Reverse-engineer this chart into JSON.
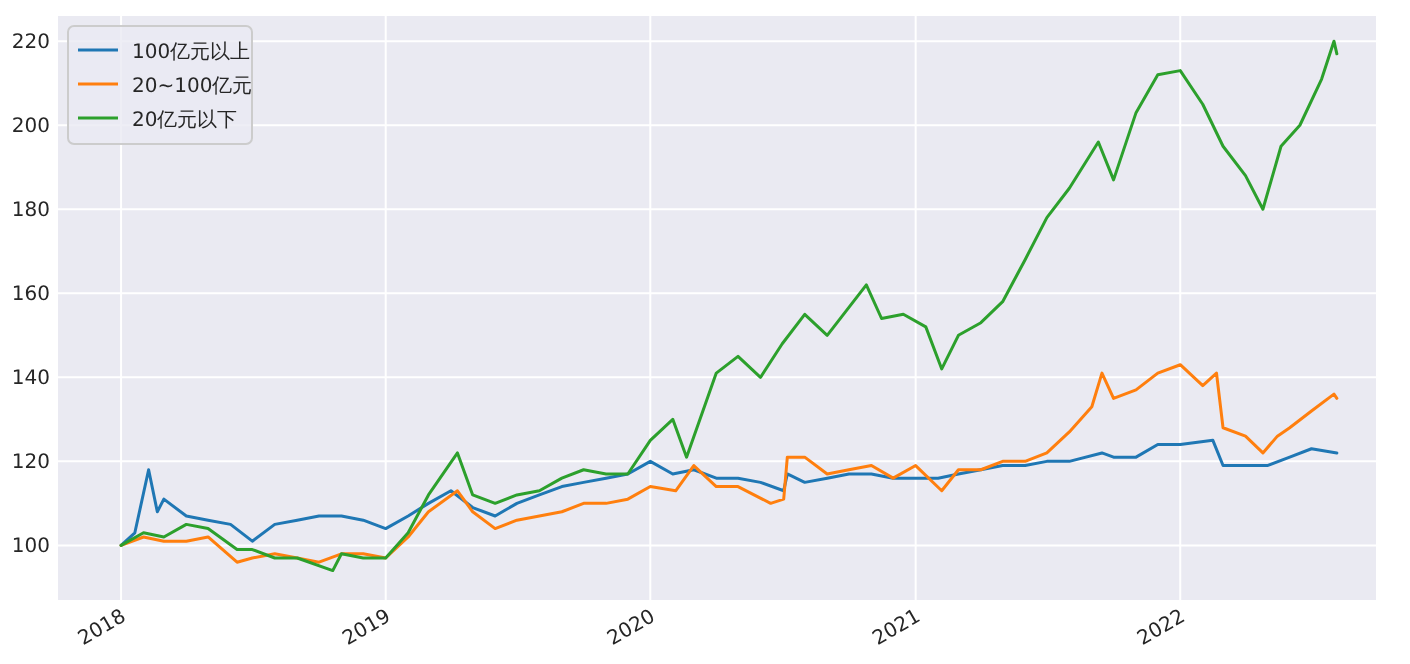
{
  "chart_data": {
    "type": "line",
    "xlim": [
      "2017-10-06",
      "2022-09-28"
    ],
    "ylim": [
      87,
      226
    ],
    "xticks": [
      "2018",
      "2019",
      "2020",
      "2021",
      "2022"
    ],
    "yticks": [
      100,
      120,
      140,
      160,
      180,
      200,
      220
    ],
    "grid": true,
    "legend": "top left",
    "line_style": "solid",
    "marker": "none",
    "series": [
      {
        "name": "100亿元以上",
        "color": "#1f77b4",
        "x": [
          "2018-01-01",
          "2018-01-20",
          "2018-02-08",
          "2018-02-20",
          "2018-03-01",
          "2018-04-01",
          "2018-05-01",
          "2018-06-01",
          "2018-07-01",
          "2018-08-01",
          "2018-09-01",
          "2018-10-01",
          "2018-11-01",
          "2018-12-01",
          "2019-01-01",
          "2019-02-01",
          "2019-03-01",
          "2019-04-01",
          "2019-05-01",
          "2019-06-01",
          "2019-07-01",
          "2019-08-01",
          "2019-09-01",
          "2019-10-01",
          "2019-11-01",
          "2019-12-01",
          "2020-01-01",
          "2020-02-01",
          "2020-03-01",
          "2020-04-01",
          "2020-05-01",
          "2020-06-01",
          "2020-07-03",
          "2020-07-08",
          "2020-08-01",
          "2020-09-01",
          "2020-10-01",
          "2020-11-01",
          "2020-12-01",
          "2021-01-01",
          "2021-02-01",
          "2021-03-01",
          "2021-04-01",
          "2021-05-01",
          "2021-06-01",
          "2021-07-01",
          "2021-08-01",
          "2021-09-15",
          "2021-10-01",
          "2021-11-01",
          "2021-12-01",
          "2022-01-01",
          "2022-02-15",
          "2022-03-01",
          "2022-04-01",
          "2022-05-01",
          "2022-06-01",
          "2022-07-01",
          "2022-08-05"
        ],
        "values": [
          100,
          103,
          118,
          108,
          111,
          107,
          106,
          105,
          101,
          105,
          106,
          107,
          107,
          106,
          104,
          107,
          110,
          113,
          109,
          107,
          110,
          112,
          114,
          115,
          116,
          117,
          120,
          117,
          118,
          116,
          116,
          115,
          113,
          117,
          115,
          116,
          117,
          117,
          116,
          116,
          116,
          117,
          118,
          119,
          119,
          120,
          120,
          122,
          121,
          121,
          124,
          124,
          125,
          119,
          119,
          119,
          121,
          123,
          122
        ]
      },
      {
        "name": "20~100亿元",
        "color": "#ff7f0e",
        "x": [
          "2018-01-01",
          "2018-02-01",
          "2018-03-01",
          "2018-04-01",
          "2018-05-01",
          "2018-06-10",
          "2018-07-01",
          "2018-08-01",
          "2018-09-01",
          "2018-10-01",
          "2018-11-01",
          "2018-12-01",
          "2019-01-01",
          "2019-02-01",
          "2019-03-01",
          "2019-04-10",
          "2019-05-01",
          "2019-06-01",
          "2019-07-01",
          "2019-08-01",
          "2019-09-01",
          "2019-10-01",
          "2019-11-01",
          "2019-12-01",
          "2020-01-01",
          "2020-02-05",
          "2020-03-01",
          "2020-04-01",
          "2020-05-01",
          "2020-06-15",
          "2020-07-03",
          "2020-07-08",
          "2020-08-01",
          "2020-09-01",
          "2020-10-01",
          "2020-11-01",
          "2020-12-01",
          "2021-01-01",
          "2021-02-06",
          "2021-03-01",
          "2021-04-01",
          "2021-05-01",
          "2021-06-01",
          "2021-07-01",
          "2021-08-01",
          "2021-09-01",
          "2021-09-15",
          "2021-10-01",
          "2021-11-01",
          "2021-12-01",
          "2022-01-01",
          "2022-02-01",
          "2022-02-20",
          "2022-03-01",
          "2022-04-01",
          "2022-04-25",
          "2022-05-15",
          "2022-06-01",
          "2022-07-01",
          "2022-08-01",
          "2022-08-05"
        ],
        "values": [
          100,
          102,
          101,
          101,
          102,
          96,
          97,
          98,
          97,
          96,
          98,
          98,
          97,
          102,
          108,
          113,
          108,
          104,
          106,
          107,
          108,
          110,
          110,
          111,
          114,
          113,
          119,
          114,
          114,
          110,
          111,
          121,
          121,
          117,
          118,
          119,
          116,
          119,
          113,
          118,
          118,
          120,
          120,
          122,
          127,
          133,
          141,
          135,
          137,
          141,
          143,
          138,
          141,
          128,
          126,
          122,
          126,
          128,
          132,
          136,
          135
        ]
      },
      {
        "name": "20亿元以下",
        "color": "#2ca02c",
        "x": [
          "2018-01-01",
          "2018-02-01",
          "2018-03-01",
          "2018-04-01",
          "2018-05-01",
          "2018-06-10",
          "2018-07-01",
          "2018-08-01",
          "2018-09-01",
          "2018-10-20",
          "2018-11-01",
          "2018-12-01",
          "2019-01-01",
          "2019-02-01",
          "2019-03-01",
          "2019-04-10",
          "2019-05-01",
          "2019-06-01",
          "2019-07-01",
          "2019-08-01",
          "2019-09-01",
          "2019-10-01",
          "2019-11-01",
          "2019-12-01",
          "2020-01-01",
          "2020-02-01",
          "2020-02-20",
          "2020-04-01",
          "2020-05-01",
          "2020-06-01",
          "2020-07-01",
          "2020-08-01",
          "2020-09-01",
          "2020-10-25",
          "2020-11-15",
          "2020-12-15",
          "2021-01-15",
          "2021-02-06",
          "2021-03-01",
          "2021-04-01",
          "2021-05-01",
          "2021-06-01",
          "2021-07-01",
          "2021-08-01",
          "2021-09-10",
          "2021-10-01",
          "2021-11-01",
          "2021-12-01",
          "2022-01-01",
          "2022-02-01",
          "2022-03-01",
          "2022-04-01",
          "2022-04-25",
          "2022-05-20",
          "2022-06-15",
          "2022-07-15",
          "2022-08-01",
          "2022-08-05"
        ],
        "values": [
          100,
          103,
          102,
          105,
          104,
          99,
          99,
          97,
          97,
          94,
          98,
          97,
          97,
          103,
          112,
          122,
          112,
          110,
          112,
          113,
          116,
          118,
          117,
          117,
          125,
          130,
          121,
          141,
          145,
          140,
          148,
          155,
          150,
          162,
          154,
          155,
          152,
          142,
          150,
          153,
          158,
          168,
          178,
          185,
          196,
          187,
          203,
          212,
          213,
          205,
          195,
          188,
          180,
          195,
          200,
          211,
          220,
          217
        ]
      }
    ]
  }
}
